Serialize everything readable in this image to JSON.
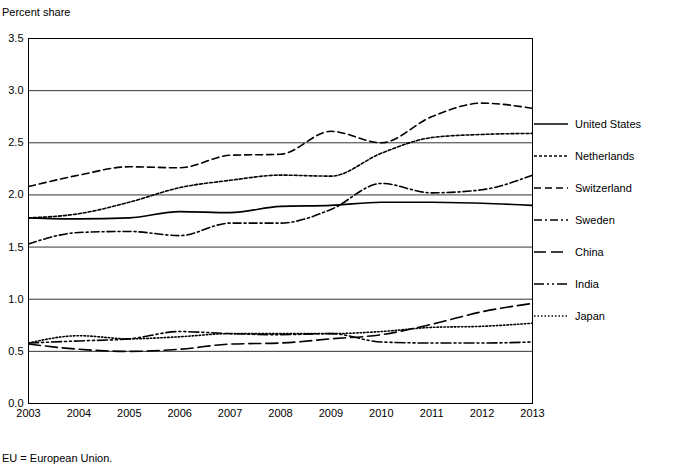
{
  "chart_data": {
    "type": "line",
    "y_label": "Percent share",
    "caption": "EU = European Union.",
    "x": [
      2003,
      2004,
      2005,
      2006,
      2007,
      2008,
      2009,
      2010,
      2011,
      2012,
      2013
    ],
    "xlim": [
      2003,
      2013
    ],
    "xticks": [
      2003,
      2004,
      2005,
      2006,
      2007,
      2008,
      2009,
      2010,
      2011,
      2012,
      2013
    ],
    "ylim": [
      0,
      3.5
    ],
    "yticks": [
      {
        "value": 0,
        "label": "0.0"
      },
      0.5,
      {
        "value": 1,
        "label": "1.0"
      },
      1.5,
      {
        "value": 2,
        "label": "2.0"
      },
      2.5,
      {
        "value": 3,
        "label": "3.0"
      },
      3.5
    ],
    "grid": true,
    "legend": "right",
    "series": [
      {
        "name": "United States",
        "color": "#000000",
        "line_style": "solid",
        "values": [
          1.78,
          1.77,
          1.78,
          1.84,
          1.83,
          1.89,
          1.9,
          1.93,
          1.93,
          1.92,
          1.9
        ]
      },
      {
        "name": "Netherlands",
        "color": "#000000",
        "line_style": "short-dash",
        "values": [
          1.78,
          1.82,
          1.93,
          2.07,
          2.14,
          2.19,
          2.18,
          2.4,
          2.55,
          2.58,
          2.59
        ]
      },
      {
        "name": "Switzerland",
        "color": "#000000",
        "line_style": "dash",
        "values": [
          2.08,
          2.19,
          2.27,
          2.26,
          2.38,
          2.39,
          2.61,
          2.5,
          2.75,
          2.88,
          2.83
        ]
      },
      {
        "name": "Sweden",
        "color": "#000000",
        "line_style": "dash-dot",
        "values": [
          1.53,
          1.64,
          1.65,
          1.61,
          1.73,
          1.73,
          1.86,
          2.11,
          2.02,
          2.05,
          2.19
        ]
      },
      {
        "name": "China",
        "color": "#000000",
        "line_style": "long-dash",
        "values": [
          0.57,
          0.52,
          0.5,
          0.52,
          0.57,
          0.58,
          0.62,
          0.66,
          0.76,
          0.88,
          0.96
        ]
      },
      {
        "name": "India",
        "color": "#000000",
        "line_style": "dash-dot-dot",
        "values": [
          0.58,
          0.6,
          0.62,
          0.69,
          0.67,
          0.66,
          0.67,
          0.59,
          0.58,
          0.58,
          0.59
        ]
      },
      {
        "name": "Japan",
        "color": "#000000",
        "line_style": "dotted",
        "values": [
          0.58,
          0.65,
          0.62,
          0.64,
          0.67,
          0.67,
          0.67,
          0.69,
          0.73,
          0.74,
          0.77
        ]
      }
    ]
  }
}
